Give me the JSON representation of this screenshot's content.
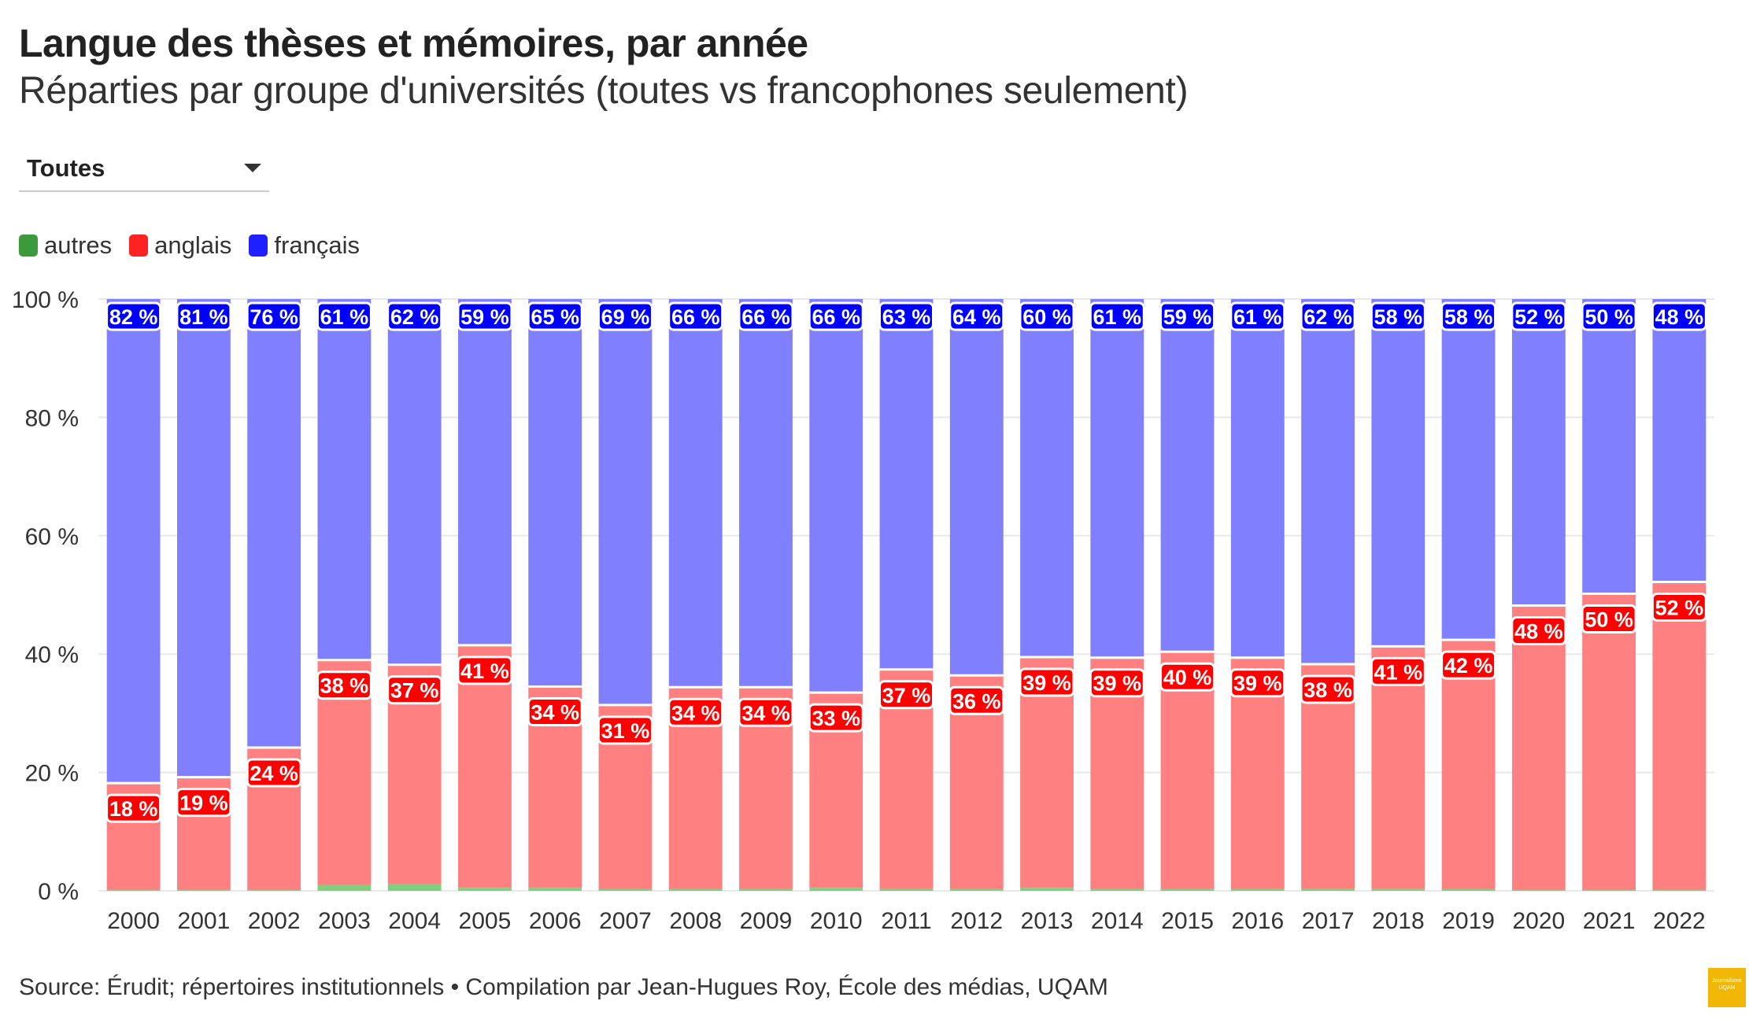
{
  "header": {
    "title": "Langue des thèses et mémoires, par année",
    "subtitle": "Réparties par groupe d'universités (toutes vs francophones seulement)"
  },
  "filter": {
    "selected": "Toutes",
    "icon": "chevron-down-icon"
  },
  "legend": {
    "items": [
      {
        "label": "autres",
        "color": "#3c9a3c"
      },
      {
        "label": "anglais",
        "color": "#ff2222"
      },
      {
        "label": "français",
        "color": "#1f1fff"
      }
    ]
  },
  "footer": {
    "source": "Source: Érudit; répertoires institutionnels • Compilation par Jean-Hugues Roy, École des médias, UQAM",
    "logo_text": "Journalisme UQAM"
  },
  "colors": {
    "autres_bar": "#7fcf7f",
    "anglais_bar": "#ff8080",
    "francais_bar": "#8080ff",
    "anglais_label_bg": "#ff0000",
    "francais_label_bg": "#0000ff",
    "grid": "#e8e8e8"
  },
  "chart_data": {
    "type": "bar",
    "stacked": true,
    "categories": [
      "2000",
      "2001",
      "2002",
      "2003",
      "2004",
      "2005",
      "2006",
      "2007",
      "2008",
      "2009",
      "2010",
      "2011",
      "2012",
      "2013",
      "2014",
      "2015",
      "2016",
      "2017",
      "2018",
      "2019",
      "2020",
      "2021",
      "2022"
    ],
    "series": [
      {
        "name": "autres",
        "values": [
          0.2,
          0.2,
          0.2,
          1.0,
          1.2,
          0.5,
          0.5,
          0.4,
          0.4,
          0.4,
          0.5,
          0.4,
          0.4,
          0.5,
          0.4,
          0.4,
          0.4,
          0.3,
          0.3,
          0.4,
          0.2,
          0.2,
          0.2
        ]
      },
      {
        "name": "anglais",
        "values": [
          18,
          19,
          24,
          38,
          37,
          41,
          34,
          31,
          34,
          34,
          33,
          37,
          36,
          39,
          39,
          40,
          39,
          38,
          41,
          42,
          48,
          50,
          52
        ]
      },
      {
        "name": "français",
        "values": [
          82,
          81,
          76,
          61,
          62,
          59,
          65,
          69,
          66,
          66,
          66,
          63,
          64,
          60,
          61,
          59,
          61,
          62,
          58,
          58,
          52,
          50,
          48
        ]
      }
    ],
    "ylim": [
      0,
      100
    ],
    "yticks": [
      "0 %",
      "20 %",
      "40 %",
      "60 %",
      "80 %",
      "100 %"
    ],
    "ytick_values": [
      0,
      20,
      40,
      60,
      80,
      100
    ],
    "value_suffix": " %",
    "legend_position": "top-left",
    "grid": true
  }
}
